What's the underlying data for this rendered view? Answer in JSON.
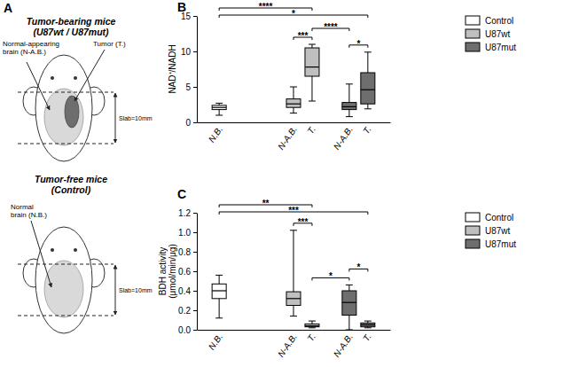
{
  "chart_data": [
    {
      "type": "box",
      "title": "B",
      "y_label": "NAD⁺/NADH",
      "categories": [
        "N.B.",
        null,
        null,
        null,
        "N-A.B.",
        "T.",
        null,
        "N-A.B.",
        "T."
      ],
      "series": [
        {
          "name": "Control",
          "color": "#ffffff",
          "values": [
            {
              "min": 1.0,
              "q1": 1.8,
              "median": 2.1,
              "q3": 2.4,
              "max": 2.7
            },
            null,
            null,
            null,
            null,
            null,
            null,
            null,
            null
          ]
        },
        {
          "name": "U87wt",
          "color": "#bfbfbf",
          "values": [
            null,
            null,
            null,
            null,
            {
              "min": 1.3,
              "q1": 2.1,
              "median": 2.6,
              "q3": 3.3,
              "max": 5.0
            },
            {
              "min": 3.0,
              "q1": 6.5,
              "median": 7.8,
              "q3": 10.5,
              "max": 11.0
            },
            null,
            null,
            null
          ]
        },
        {
          "name": "U87mut",
          "color": "#6e6e6e",
          "values": [
            null,
            null,
            null,
            null,
            null,
            null,
            null,
            {
              "min": 0.8,
              "q1": 1.8,
              "median": 2.2,
              "q3": 2.8,
              "max": 5.4
            },
            {
              "min": 1.9,
              "q1": 2.6,
              "median": 4.6,
              "q3": 7.0,
              "max": 9.9
            }
          ]
        }
      ],
      "ylim": [
        0,
        15
      ],
      "yticks": [
        0,
        5,
        10,
        15
      ],
      "legend": "right",
      "annotations": [
        {
          "text": "****",
          "pair": [
            0,
            5
          ]
        },
        {
          "text": "*",
          "pair": [
            0,
            8
          ]
        },
        {
          "text": "***",
          "pair": [
            4,
            5
          ]
        },
        {
          "text": "****",
          "pair": [
            5,
            7
          ]
        },
        {
          "text": "*",
          "pair": [
            7,
            8
          ]
        }
      ]
    },
    {
      "type": "box",
      "title": "C",
      "y_label": [
        "BDH activity",
        "(μmol/min/μg)"
      ],
      "categories": [
        "N.B.",
        null,
        null,
        null,
        "N-A.B.",
        "T.",
        null,
        "N-A.B.",
        "T."
      ],
      "series": [
        {
          "name": "Control",
          "color": "#ffffff",
          "values": [
            {
              "min": 0.12,
              "q1": 0.32,
              "median": 0.4,
              "q3": 0.47,
              "max": 0.56
            },
            null,
            null,
            null,
            null,
            null,
            null,
            null,
            null
          ]
        },
        {
          "name": "U87wt",
          "color": "#bfbfbf",
          "values": [
            null,
            null,
            null,
            null,
            {
              "min": 0.14,
              "q1": 0.25,
              "median": 0.32,
              "q3": 0.39,
              "max": 1.02
            },
            {
              "min": 0.02,
              "q1": 0.03,
              "median": 0.04,
              "q3": 0.06,
              "max": 0.09
            },
            null,
            null,
            null
          ]
        },
        {
          "name": "U87mut",
          "color": "#6e6e6e",
          "values": [
            null,
            null,
            null,
            null,
            null,
            null,
            null,
            {
              "min": 0.0,
              "q1": 0.15,
              "median": 0.28,
              "q3": 0.4,
              "max": 0.46
            },
            {
              "min": 0.02,
              "q1": 0.03,
              "median": 0.05,
              "q3": 0.07,
              "max": 0.09
            }
          ]
        }
      ],
      "ylim": [
        0,
        1.2
      ],
      "yticks": [
        {
          "value": 0,
          "label": "0.0"
        },
        0.2,
        0.4,
        0.6,
        0.8,
        {
          "value": 1,
          "label": "1.0"
        },
        1.2
      ],
      "legend": "right",
      "annotations": [
        {
          "text": "**",
          "pair": [
            0,
            5
          ]
        },
        {
          "text": "***",
          "pair": [
            0,
            8
          ]
        },
        {
          "text": "***",
          "pair": [
            4,
            5
          ]
        },
        {
          "text": "*",
          "pair": [
            5,
            7
          ]
        },
        {
          "text": "*",
          "pair": [
            7,
            8
          ]
        }
      ]
    }
  ],
  "diagram": {
    "label": "A",
    "panels": [
      {
        "title": [
          "Tumor-bearing mice",
          "(U87wt / U87mut)"
        ],
        "regions": [
          {
            "label": [
              "Normal-appearing",
              "brain (N-A.B.)"
            ]
          },
          {
            "label": [
              "Tumor (T.)"
            ]
          }
        ],
        "slab": "Slab=10mm"
      },
      {
        "title": [
          "Tumor-free mice",
          "(Control)"
        ],
        "regions": [
          {
            "label": [
              "Normal",
              "brain (N.B.)"
            ]
          }
        ],
        "slab": "Slab=10mm"
      }
    ]
  }
}
